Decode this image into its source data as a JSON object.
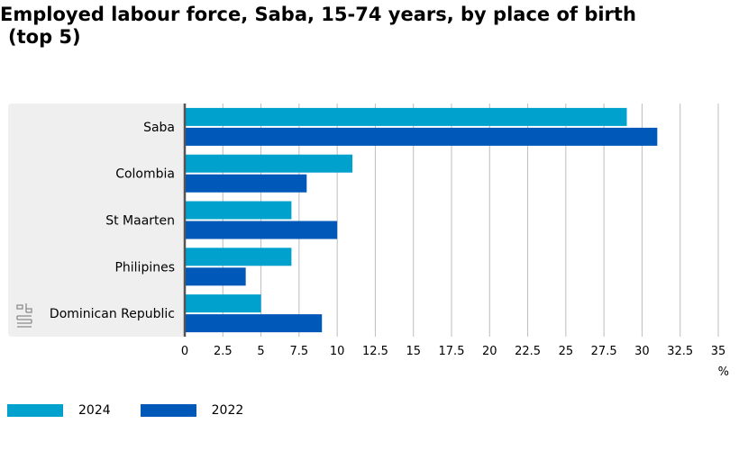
{
  "title": "Employed labour force, Saba, 15-74 years, by place of birth (top 5)",
  "colors": {
    "2024": "#00a1cd",
    "2022": "#0058b8",
    "panel": "#efefef",
    "grid": "#bdbdbd",
    "axis": "#555555"
  },
  "logo": {
    "name": "cbs",
    "text": "cbs"
  },
  "chart_data": {
    "type": "bar",
    "orientation": "horizontal",
    "title": "Employed labour force, Saba, 15-74 years, by place of birth (top 5)",
    "categories": [
      "Saba",
      "Colombia",
      "St Maarten",
      "Philipines",
      "Dominican Republic"
    ],
    "series": [
      {
        "name": "2024",
        "values": [
          29,
          11,
          7,
          7,
          5
        ]
      },
      {
        "name": "2022",
        "values": [
          31,
          8,
          10,
          4,
          9
        ]
      }
    ],
    "xlabel": "%",
    "xlim": [
      0,
      35
    ],
    "xticks": [
      "0",
      "2.5",
      "5",
      "7.5",
      "10",
      "12.5",
      "15",
      "17.5",
      "20",
      "22.5",
      "25",
      "27.5",
      "30",
      "32.5",
      "35"
    ],
    "grid": true,
    "legend_position": "bottom-left"
  }
}
